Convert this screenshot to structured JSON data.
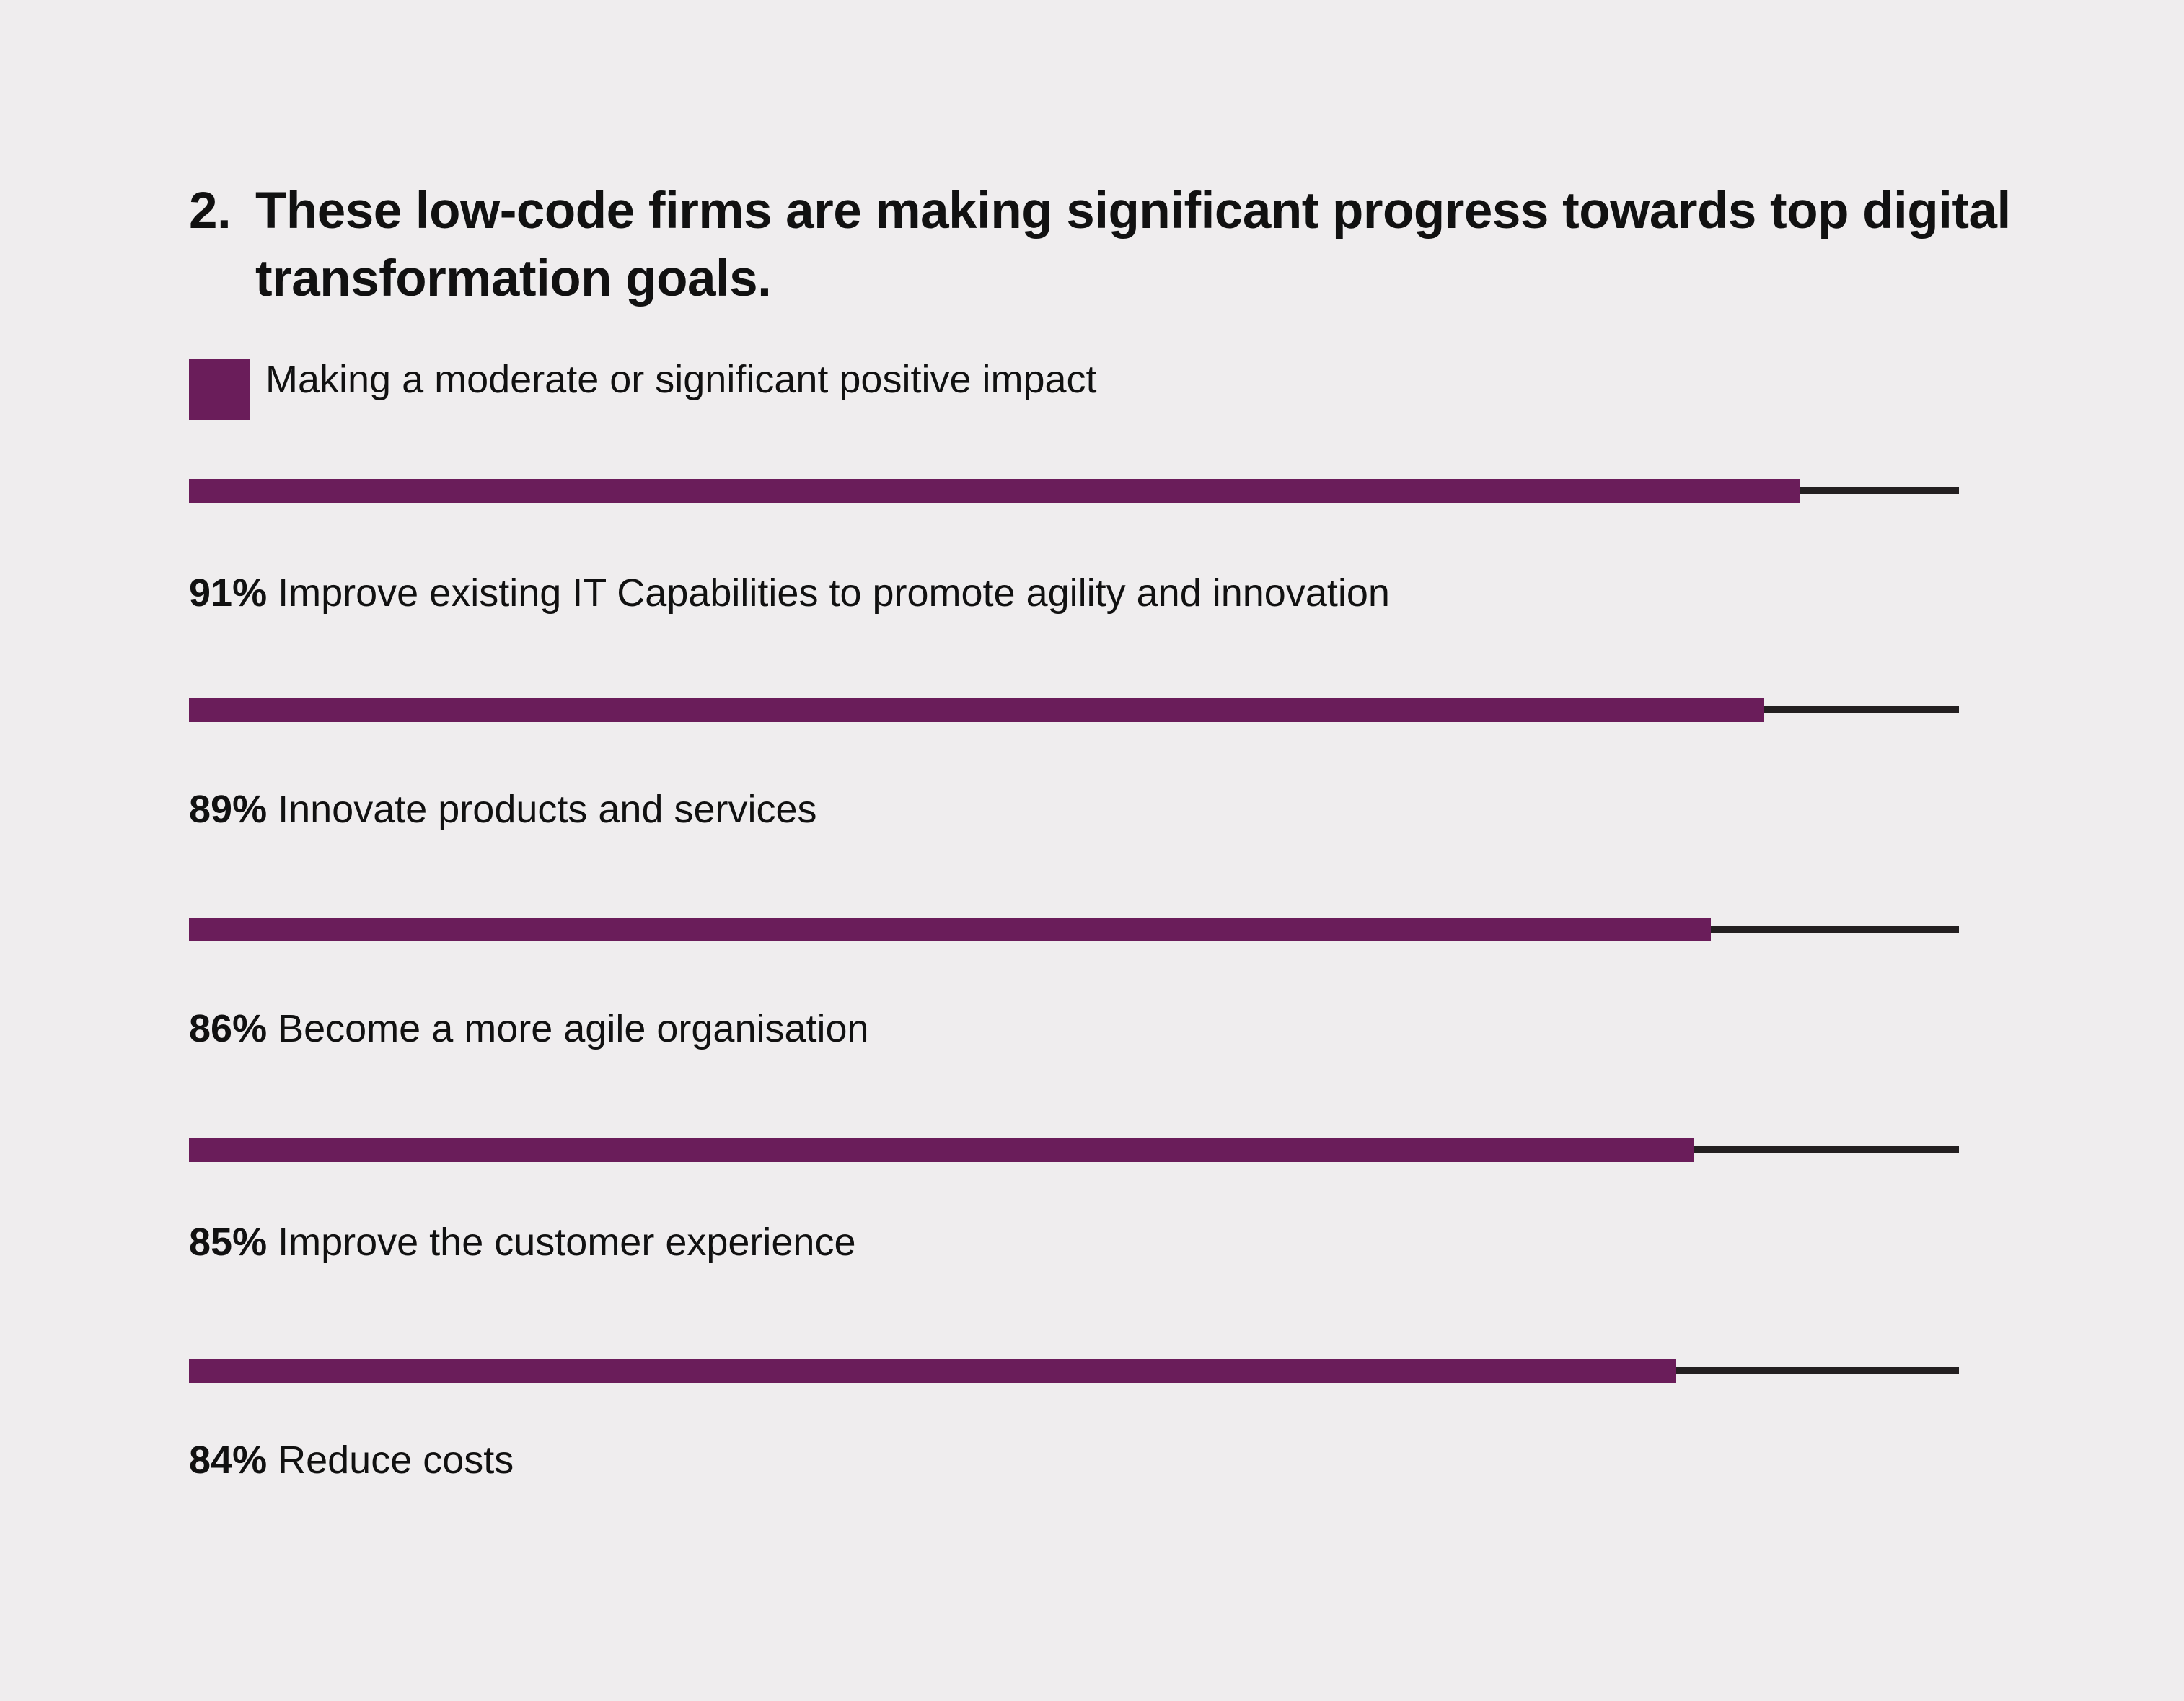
{
  "title_number": "2.",
  "title_text": "These low-code firms are making significant progress towards top digital transformation goals.",
  "colors": {
    "bar": "#6a1d5a",
    "track": "#231f20",
    "background": "#efedee"
  },
  "chart_data": {
    "type": "bar",
    "orientation": "horizontal",
    "title": "2. These low-code firms are making significant progress towards top digital transformation goals.",
    "legend": [
      {
        "label": "Making a moderate or significant positive impact",
        "color": "#6a1d5a"
      }
    ],
    "categories": [
      "Improve existing IT Capabilities to promote agility and innovation",
      "Innovate products and services",
      "Become a more agile organisation",
      "Improve the customer experience",
      "Reduce costs"
    ],
    "value_labels": [
      "91%",
      "89%",
      "86%",
      "85%",
      "84%"
    ],
    "values": [
      91,
      89,
      86,
      85,
      84
    ],
    "xlim": [
      0,
      100
    ],
    "unit": "%",
    "grid": false
  }
}
